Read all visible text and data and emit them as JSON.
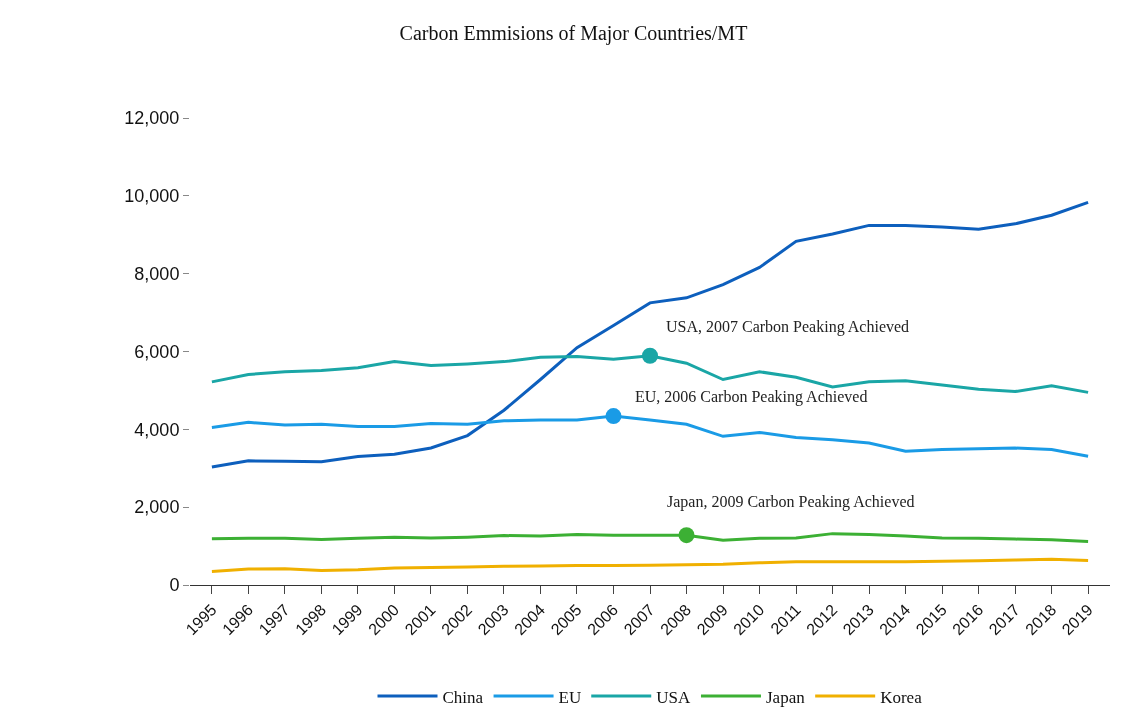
{
  "chart_data": {
    "type": "line",
    "title": "Carbon Emmisions of Major Countries/MT",
    "categories": [
      "1995",
      "1996",
      "1997",
      "1998",
      "1999",
      "2000",
      "2001",
      "2002",
      "2003",
      "2004",
      "2005",
      "2006",
      "2007",
      "2008",
      "2009",
      "2010",
      "2011",
      "2012",
      "2013",
      "2014",
      "2015",
      "2016",
      "2017",
      "2018",
      "2019"
    ],
    "ylim": [
      0,
      12000
    ],
    "yticks": [
      {
        "value": 0,
        "label": "0"
      },
      {
        "value": 2000,
        "label": "2,000"
      },
      {
        "value": 4000,
        "label": "4,000"
      },
      {
        "value": 6000,
        "label": "6,000"
      },
      {
        "value": 8000,
        "label": "8,000"
      },
      {
        "value": 10000,
        "label": "10,000"
      },
      {
        "value": 12000,
        "label": "12,000"
      }
    ],
    "series": [
      {
        "name": "China",
        "color": "#0d5fbd",
        "values": [
          3030,
          3190,
          3180,
          3170,
          3300,
          3360,
          3520,
          3840,
          4490,
          5280,
          6100,
          6670,
          7250,
          7380,
          7720,
          8160,
          8830,
          9020,
          9240,
          9240,
          9200,
          9140,
          9280,
          9500,
          9830
        ]
      },
      {
        "name": "EU",
        "color": "#1a9be6",
        "values": [
          4050,
          4180,
          4110,
          4130,
          4070,
          4070,
          4150,
          4130,
          4220,
          4240,
          4240,
          4340,
          4240,
          4130,
          3820,
          3920,
          3790,
          3730,
          3650,
          3440,
          3480,
          3500,
          3520,
          3480,
          3310
        ]
      },
      {
        "name": "USA",
        "color": "#1aa6a6",
        "values": [
          5220,
          5410,
          5480,
          5510,
          5580,
          5740,
          5640,
          5680,
          5740,
          5850,
          5870,
          5800,
          5890,
          5700,
          5280,
          5480,
          5340,
          5090,
          5220,
          5250,
          5140,
          5030,
          4970,
          5120,
          4950
        ]
      },
      {
        "name": "Japan",
        "color": "#3cb034",
        "values": [
          1190,
          1200,
          1200,
          1170,
          1200,
          1230,
          1210,
          1230,
          1270,
          1260,
          1300,
          1280,
          1280,
          1280,
          1150,
          1200,
          1210,
          1320,
          1300,
          1260,
          1210,
          1200,
          1180,
          1160,
          1120
        ]
      },
      {
        "name": "Korea",
        "color": "#f0b000",
        "values": [
          350,
          410,
          420,
          370,
          390,
          440,
          450,
          460,
          480,
          490,
          500,
          500,
          510,
          520,
          530,
          570,
          600,
          600,
          600,
          600,
          610,
          620,
          640,
          660,
          630
        ]
      },
      {
        "type": "scatter",
        "marker": "circle",
        "color": "#1aa6a6",
        "values": [
          null,
          null,
          null,
          null,
          null,
          null,
          null,
          null,
          null,
          null,
          null,
          null,
          5890,
          null,
          null,
          null,
          null,
          null,
          null,
          null,
          null,
          null,
          null,
          null,
          null
        ]
      },
      {
        "type": "scatter",
        "marker": "circle",
        "color": "#1a9be6",
        "values": [
          null,
          null,
          null,
          null,
          null,
          null,
          null,
          null,
          null,
          null,
          null,
          4340,
          null,
          null,
          null,
          null,
          null,
          null,
          null,
          null,
          null,
          null,
          null,
          null,
          null
        ]
      },
      {
        "type": "scatter",
        "marker": "circle",
        "color": "#3cb034",
        "values": [
          null,
          null,
          null,
          null,
          null,
          null,
          null,
          null,
          null,
          null,
          null,
          null,
          null,
          1280,
          null,
          null,
          null,
          null,
          null,
          null,
          null,
          null,
          null,
          null,
          null
        ]
      }
    ],
    "annotations": [
      {
        "text": "USA, 2007 Carbon Peaking Achieved",
        "x": "2007",
        "y": 5890
      },
      {
        "text": "EU, 2006 Carbon Peaking Achieved",
        "x": "2006",
        "y": 4340
      },
      {
        "text": "Japan, 2009 Carbon Peaking Achieved",
        "x": "2008",
        "y": 1280
      }
    ],
    "legend": "bottom",
    "marker": "none",
    "line_style": "solid"
  }
}
